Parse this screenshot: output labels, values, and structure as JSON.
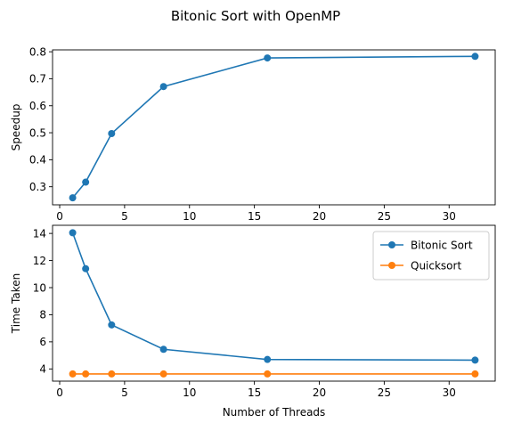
{
  "figure": {
    "suptitle": "Bitonic Sort with OpenMP"
  },
  "chart_data": [
    {
      "type": "line",
      "title": "",
      "xlabel": "",
      "ylabel": "Speedup",
      "xlim": [
        -0.55,
        33.55
      ],
      "ylim": [
        0.233,
        0.807
      ],
      "xticks": [
        0,
        5,
        10,
        15,
        20,
        25,
        30
      ],
      "yticks": [
        0.3,
        0.4,
        0.5,
        0.6,
        0.7,
        0.8
      ],
      "ytick_labels": [
        "0.3",
        "0.4",
        "0.5",
        "0.6",
        "0.7",
        "0.8"
      ],
      "legend": null,
      "grid": false,
      "series": [
        {
          "name": "",
          "color": "#1f77b4",
          "marker": "circle",
          "x": [
            1,
            2,
            4,
            8,
            16,
            32
          ],
          "y": [
            0.259,
            0.317,
            0.497,
            0.671,
            0.777,
            0.783
          ]
        }
      ]
    },
    {
      "type": "line",
      "title": "",
      "xlabel": "Number of Threads",
      "ylabel": "Time Taken",
      "xlim": [
        -0.55,
        33.55
      ],
      "ylim": [
        3.1,
        14.6
      ],
      "xticks": [
        0,
        5,
        10,
        15,
        20,
        25,
        30
      ],
      "yticks": [
        4,
        6,
        8,
        10,
        12,
        14
      ],
      "ytick_labels": [
        "4",
        "6",
        "8",
        "10",
        "12",
        "14"
      ],
      "legend": "top-right",
      "grid": false,
      "series": [
        {
          "name": "Bitonic Sort",
          "color": "#1f77b4",
          "marker": "circle",
          "x": [
            1,
            2,
            4,
            8,
            16,
            32
          ],
          "y": [
            14.05,
            11.4,
            7.25,
            5.45,
            4.7,
            4.65
          ]
        },
        {
          "name": "Quicksort",
          "color": "#ff7f0e",
          "marker": "circle",
          "x": [
            1,
            2,
            4,
            8,
            16,
            32
          ],
          "y": [
            3.63,
            3.63,
            3.63,
            3.63,
            3.63,
            3.63
          ]
        }
      ]
    }
  ]
}
